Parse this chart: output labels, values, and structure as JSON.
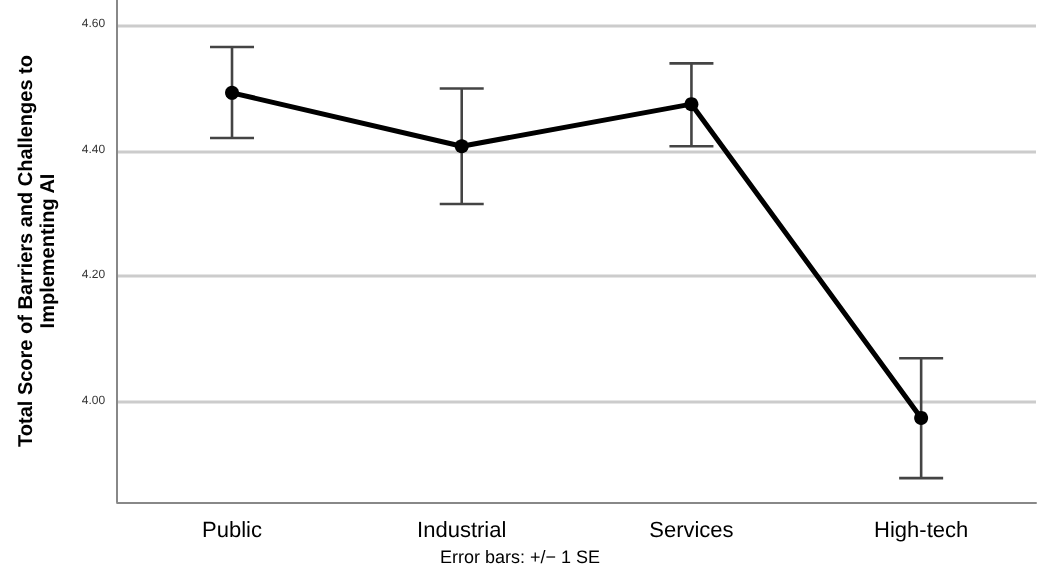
{
  "chart_data": {
    "type": "line",
    "ylabel": "Total Score of Barriers and Challenges to\nImplementing AI",
    "categories": [
      "Public",
      "Industrial",
      "Services",
      "High-tech"
    ],
    "series": [
      {
        "color": "#000000",
        "values": [
          4.492,
          4.407,
          4.474,
          3.974
        ],
        "errors": [
          [
            4.42,
            4.565
          ],
          [
            4.315,
            4.499
          ],
          [
            4.407,
            4.539
          ],
          [
            3.878,
            4.069
          ]
        ]
      }
    ],
    "ylim": [
      3.84,
      4.64
    ],
    "yticks": [
      {
        "value": 4,
        "label": "4.00"
      },
      {
        "value": 4.2,
        "label": "4.20"
      },
      {
        "value": 4.4,
        "label": "4.40"
      },
      {
        "value": 4.6,
        "label": "4.60"
      }
    ],
    "grid": "y",
    "marker": "circle",
    "line_style": "solid",
    "annotations": [
      "Error bars: +/− 1 SE"
    ]
  }
}
